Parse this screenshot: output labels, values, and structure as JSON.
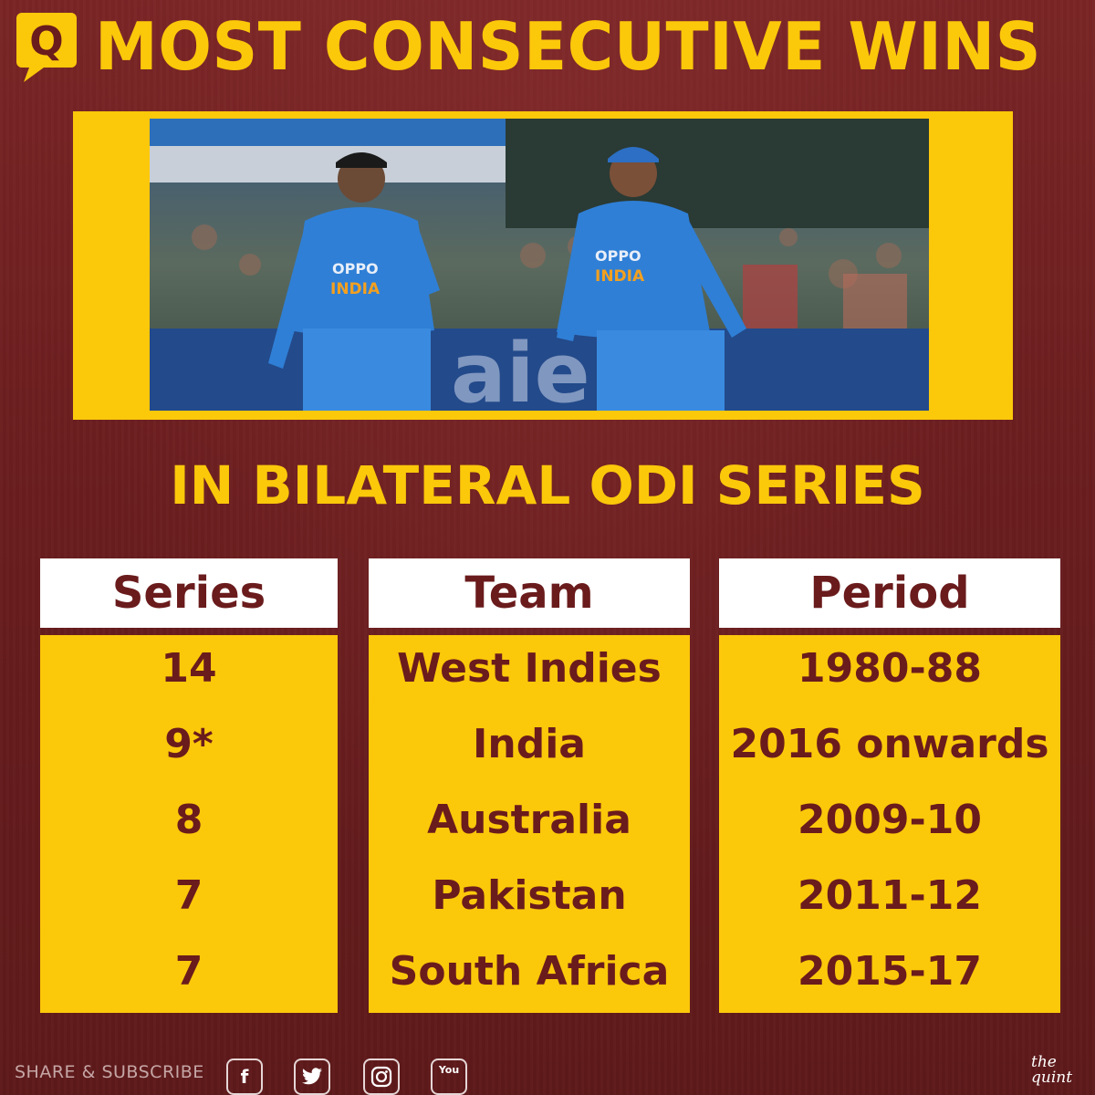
{
  "header": {
    "logo_letter": "Q",
    "title": "MOST CONSECUTIVE WINS"
  },
  "subtitle": "IN BILATERAL ODI SERIES",
  "photo": {
    "jersey_text": "INDIA",
    "sponsor_text": "OPPO"
  },
  "table": {
    "columns": [
      "Series",
      "Team",
      "Period"
    ],
    "rows": [
      {
        "series": "14",
        "team": "West Indies",
        "period": "1980-88"
      },
      {
        "series": "9*",
        "team": "India",
        "period": "2016 onwards"
      },
      {
        "series": "8",
        "team": "Australia",
        "period": "2009-10"
      },
      {
        "series": "7",
        "team": "Pakistan",
        "period": "2011-12"
      },
      {
        "series": "7",
        "team": "South Africa",
        "period": "2015-17"
      }
    ]
  },
  "footer": {
    "share_text": "SHARE & SUBSCRIBE",
    "icons": [
      "facebook-icon",
      "twitter-icon",
      "instagram-icon",
      "youtube-icon"
    ],
    "facebook_glyph": "f",
    "twitter_glyph": "t",
    "youtube_glyph": "You",
    "brand_line1": "the",
    "brand_line2": "quint"
  },
  "colors": {
    "background": "#6b1e1f",
    "accent_yellow": "#fcc80a",
    "header_white": "#ffffff",
    "text_maroon": "#6a1b1c"
  }
}
